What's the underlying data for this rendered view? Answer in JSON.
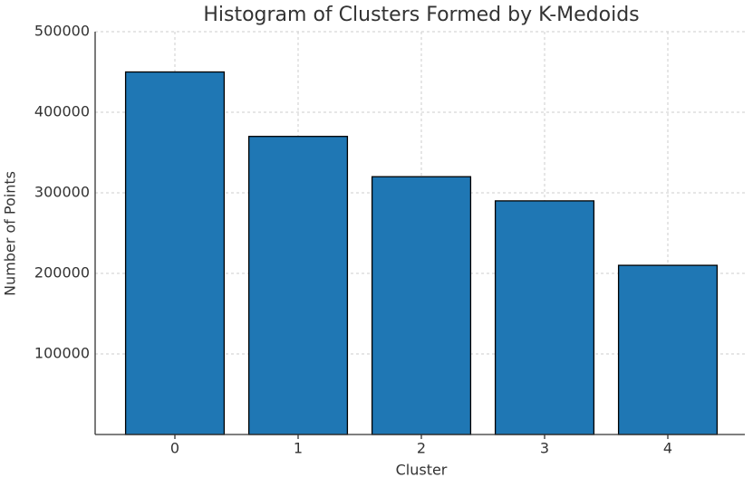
{
  "chart_data": {
    "type": "bar",
    "title": "Histogram of Clusters Formed by K-Medoids",
    "x_label": "Cluster",
    "y_label": "Number of Points",
    "categories": [
      "0",
      "1",
      "2",
      "3",
      "4"
    ],
    "values": [
      450000,
      370000,
      320000,
      290000,
      210000
    ],
    "color": "#1f77b4",
    "edge_color": "#000000",
    "ylim": [
      0,
      500000
    ],
    "yticks": [
      100000,
      200000,
      300000,
      400000,
      500000
    ],
    "grid": true
  }
}
